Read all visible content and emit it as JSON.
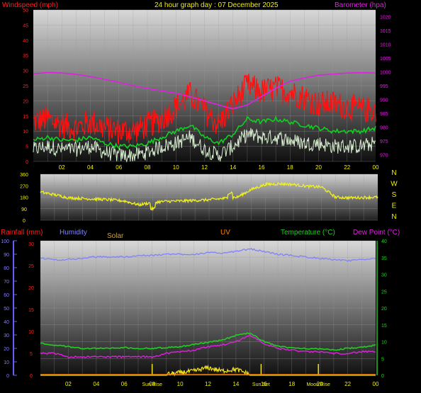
{
  "colors": {
    "wind_gust": "#ff1010",
    "wind_avg": "#10d020",
    "wind_speed": "#d8f0d0",
    "barometer": "#e020e0",
    "direction": "#f0f020",
    "humidity": "#8080ff",
    "temperature": "#20d020",
    "dew_point": "#e020e0",
    "solar": "#f0e020",
    "uv": "#ff8000",
    "rain": "#ff3030",
    "axis_yellow": "#f0f000",
    "axis_green": "#20d020",
    "axis_blue": "#6060ff"
  },
  "chart_data": [
    {
      "type": "line",
      "panel": "wind",
      "title": "24 hour graph day : 07 December 2025",
      "left_label": "Windspeed (mph)",
      "right_label": "Barometer (hpa)",
      "ylim_left": [
        0,
        50
      ],
      "ylim_right": [
        967.5,
        1022.5
      ],
      "left_ticks": [
        "0",
        "5",
        "10",
        "15",
        "20",
        "25",
        "30",
        "35",
        "40",
        "45",
        "50"
      ],
      "right_ticks": [
        "970",
        "975",
        "980",
        "985",
        "990",
        "995",
        "1000",
        "1005",
        "1010",
        "1015",
        "1020"
      ],
      "x_ticks": [
        "02",
        "04",
        "06",
        "08",
        "10",
        "12",
        "14",
        "16",
        "18",
        "20",
        "22",
        "00"
      ],
      "x_hours": [
        0,
        1,
        2,
        3,
        4,
        5,
        6,
        7,
        8,
        9,
        10,
        11,
        12,
        13,
        14,
        15,
        16,
        17,
        18,
        19,
        20,
        21,
        22,
        23,
        24
      ],
      "series": [
        {
          "key": "gust",
          "values": [
            13,
            14,
            12,
            11,
            13,
            11,
            10,
            10,
            12,
            14,
            18,
            22,
            17,
            12,
            19,
            25,
            23,
            24,
            23,
            21,
            19,
            19,
            18,
            17,
            17
          ]
        },
        {
          "key": "average",
          "values": [
            7,
            8,
            7,
            7,
            8,
            6,
            5,
            5,
            6,
            8,
            10,
            12,
            8,
            6,
            9,
            14,
            13,
            14,
            13,
            12,
            11,
            10,
            10,
            10,
            11
          ]
        },
        {
          "key": "speed",
          "values": [
            4,
            5,
            4,
            4,
            5,
            3,
            2,
            2,
            3,
            5,
            6,
            8,
            4,
            2,
            5,
            9,
            8,
            8,
            7,
            6,
            6,
            5,
            5,
            5,
            6
          ]
        },
        {
          "key": "barometer",
          "values": [
            999.3,
            999.8,
            999.6,
            999.1,
            998.3,
            997.3,
            996.2,
            995.0,
            994.0,
            993.1,
            992.3,
            991.0,
            989.5,
            988.0,
            986.6,
            988.0,
            991.1,
            994.1,
            996.6,
            997.8,
            998.8,
            999.2,
            999.6,
            999.7,
            999.6
          ]
        }
      ]
    },
    {
      "type": "line",
      "panel": "direction",
      "left_ticks": [
        "0",
        "90",
        "180",
        "270",
        "360"
      ],
      "right_ticks": [
        "N",
        "W",
        "S",
        "E",
        "N"
      ],
      "ylim": [
        0,
        360
      ],
      "x_hours": [
        0,
        1,
        2,
        3,
        4,
        5,
        6,
        7,
        8,
        9,
        10,
        11,
        12,
        13,
        14,
        15,
        16,
        17,
        18,
        19,
        20,
        21,
        22,
        23,
        24
      ],
      "series": [
        {
          "key": "direction",
          "values": [
            220,
            200,
            175,
            170,
            165,
            160,
            150,
            120,
            140,
            148,
            150,
            155,
            160,
            170,
            180,
            240,
            280,
            285,
            280,
            265,
            260,
            180,
            175,
            178,
            180
          ]
        }
      ]
    },
    {
      "type": "line",
      "panel": "temp",
      "labels": {
        "rainfall": "Rainfall (mm)",
        "humidity": "Humidity",
        "solar": "Solar",
        "uv": "UV",
        "temperature": "Temperature (°C)",
        "dew_point": "Dew Point (°C)"
      },
      "rain_ticks": [
        "0",
        "5",
        "10",
        "15",
        "20",
        "25",
        "30"
      ],
      "humidity_ticks": [
        "0",
        "10",
        "20",
        "30",
        "40",
        "50",
        "60",
        "70",
        "80",
        "90",
        "100"
      ],
      "temp_ticks": [
        "0",
        "5",
        "10",
        "15",
        "20",
        "25",
        "30",
        "35",
        "40"
      ],
      "ylim_temp": [
        0,
        40
      ],
      "ylim_humidity": [
        0,
        100
      ],
      "x_ticks": [
        "02",
        "04",
        "06",
        "08",
        "10",
        "12",
        "14",
        "16",
        "18",
        "20",
        "22",
        "00"
      ],
      "events": [
        {
          "label": "Sun Rise",
          "hour": 8.0
        },
        {
          "label": "Sun Set",
          "hour": 15.8
        },
        {
          "label": "Moon Rise",
          "hour": 19.9
        }
      ],
      "x_hours": [
        0,
        1,
        2,
        3,
        4,
        5,
        6,
        7,
        8,
        9,
        10,
        11,
        12,
        13,
        14,
        15,
        16,
        17,
        18,
        19,
        20,
        21,
        22,
        23,
        24
      ],
      "series": [
        {
          "key": "humidity",
          "values": [
            87,
            86,
            86,
            87,
            88,
            88,
            88,
            89,
            89,
            90,
            90,
            90,
            91,
            91,
            92,
            94,
            92,
            90,
            89,
            88,
            87,
            86,
            85,
            86,
            87
          ]
        },
        {
          "key": "temperature",
          "values": [
            9.5,
            9.0,
            8.5,
            8.0,
            8.0,
            8.0,
            8.2,
            8.0,
            8.0,
            8.2,
            8.5,
            9.2,
            9.8,
            10.5,
            11.8,
            12.6,
            10.0,
            8.6,
            8.2,
            8.0,
            7.8,
            7.5,
            8.0,
            8.3,
            9.0
          ]
        },
        {
          "key": "dew_point",
          "values": [
            6.5,
            6.5,
            5.5,
            5.5,
            5.5,
            5.5,
            5.5,
            5.5,
            5.5,
            6.5,
            7.0,
            7.5,
            8.5,
            9.0,
            10.0,
            12.0,
            9.5,
            8.0,
            7.5,
            7.0,
            7.0,
            6.5,
            6.5,
            7.0,
            7.0
          ]
        },
        {
          "key": "solar",
          "values": [
            0,
            0,
            0,
            0,
            0,
            0,
            0,
            0,
            0,
            0,
            0.5,
            1.0,
            2.0,
            1.0,
            1.5,
            0,
            0,
            0,
            0,
            0,
            0,
            0,
            0,
            0,
            0
          ]
        }
      ]
    }
  ]
}
